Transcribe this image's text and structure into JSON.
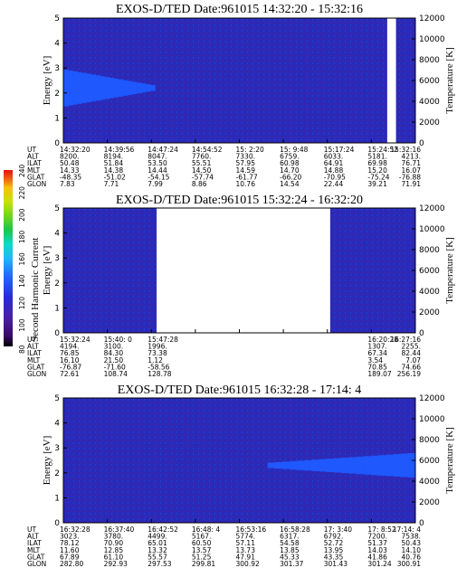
{
  "colors": {
    "background": "#2a2ab8",
    "band": "#1f5bff",
    "gap": "#ffffff",
    "colorbar": [
      "#000000",
      "#3a0a6a",
      "#4b1fa8",
      "#2b2bd8",
      "#1f6bff",
      "#1fb8ff",
      "#11d8c8",
      "#18c84a",
      "#6fd818",
      "#c8e010",
      "#f8c010",
      "#f06010",
      "#e81010"
    ]
  },
  "colorbar": {
    "title": "Second Harmonic Current",
    "ticks": [
      "80",
      "100",
      "120",
      "140",
      "160",
      "180",
      "200",
      "220",
      "240"
    ]
  },
  "row_labels": [
    "UT",
    "ALT",
    "ILAT",
    "MLT",
    "GLAT",
    "GLON"
  ],
  "chart_data": [
    {
      "type": "heatmap",
      "title": "EXOS-D/TED   Date:961015   14:32:20 - 15:32:16",
      "ylabel": "Energy [eV]",
      "y2label": "Temperature [K]",
      "ylim": [
        0,
        5
      ],
      "y_ticks": [
        "0",
        "1",
        "2",
        "3",
        "4",
        "5"
      ],
      "y2lim": [
        0,
        12000
      ],
      "y2_ticks": [
        "0",
        "2000",
        "4000",
        "6000",
        "8000",
        "10000",
        "12000"
      ],
      "band": {
        "x_start": 0.0,
        "x_end": 0.26,
        "y_center": 2.2,
        "half_width_start": 0.75,
        "half_width_end": 0.1
      },
      "data_gaps": [
        {
          "x_start": 0.92,
          "x_end": 0.945
        }
      ],
      "ephemeris": [
        [
          "14:32:20",
          "8200.",
          "50.48",
          "14.33",
          "-48.35",
          "7.83"
        ],
        [
          "14:39:56",
          "8194.",
          "51.84",
          "14.38",
          "-51.02",
          "7.71"
        ],
        [
          "14:47:24",
          "8047.",
          "53.50",
          "14.44",
          "-54.15",
          "7.99"
        ],
        [
          "14:54:52",
          "7760.",
          "55.51",
          "14.50",
          "-57.74",
          "8.86"
        ],
        [
          "15: 2:20",
          "7330.",
          "57.95",
          "14.59",
          "-61.77",
          "10.76"
        ],
        [
          "15: 9:48",
          "6759.",
          "60.98",
          "14.70",
          "-66.20",
          "14.54"
        ],
        [
          "15:17:24",
          "6033.",
          "64.91",
          "14.88",
          "-70.95",
          "22.44"
        ],
        [
          "15:24:52",
          "5181.",
          "69.98",
          "15.20",
          "-75.24",
          "39.21"
        ],
        [
          "15:32:16",
          "4213.",
          "76.71",
          "16.07",
          "-76.88",
          "71.91"
        ]
      ]
    },
    {
      "type": "heatmap",
      "title": "EXOS-D/TED   Date:961015   15:32:24 - 16:32:20",
      "ylabel": "Energy [eV]",
      "y2label": "Temperature [K]",
      "ylim": [
        0,
        5
      ],
      "y_ticks": [
        "0",
        "1",
        "2",
        "3",
        "4",
        "5"
      ],
      "y2lim": [
        0,
        12000
      ],
      "y2_ticks": [
        "0",
        "2000",
        "4000",
        "6000",
        "8000",
        "10000",
        "12000"
      ],
      "band": null,
      "data_gaps": [
        {
          "x_start": 0.265,
          "x_end": 0.758
        }
      ],
      "ephemeris": [
        [
          "15:32:24",
          "4194.",
          "76.85",
          "16.10",
          "-76.87",
          "72.61"
        ],
        [
          "15:40: 0",
          "3100.",
          "84.30",
          "21.50",
          "-71.60",
          "108.74"
        ],
        [
          "15:47:28",
          "1996.",
          "73.38",
          "1.12",
          "-58.56",
          "128.78"
        ],
        [
          "",
          "",
          "",
          "",
          "",
          ""
        ],
        [
          "",
          "",
          "",
          "",
          "",
          ""
        ],
        [
          "",
          "",
          "",
          "",
          "",
          ""
        ],
        [
          "",
          "",
          "",
          "",
          "",
          ""
        ],
        [
          "16:20:28",
          "1307.",
          "67.34",
          "3.54",
          "70.85",
          "189.07"
        ],
        [
          "16:27:16",
          "2255.",
          "82.44",
          "7.07",
          "74.66",
          "256.19"
        ]
      ]
    },
    {
      "type": "heatmap",
      "title": "EXOS-D/TED   Date:961015   16:32:28 - 17:14: 4",
      "ylabel": "Energy [eV]",
      "y2label": "Temperature [K]",
      "ylim": [
        0,
        5
      ],
      "y_ticks": [
        "0",
        "1",
        "2",
        "3",
        "4",
        "5"
      ],
      "y2lim": [
        0,
        12000
      ],
      "y2_ticks": [
        "0",
        "2000",
        "4000",
        "6000",
        "8000",
        "10000",
        "12000"
      ],
      "band": {
        "x_start": 0.58,
        "x_end": 1.0,
        "y_center": 2.3,
        "half_width_start": 0.1,
        "half_width_end": 0.5
      },
      "data_gaps": [],
      "ephemeris": [
        [
          "16:32:28",
          "3023.",
          "78.12",
          "11.60",
          "67.89",
          "282.80"
        ],
        [
          "16:37:40",
          "3780.",
          "70.90",
          "12.85",
          "61.10",
          "292.93"
        ],
        [
          "16:42:52",
          "4499.",
          "65.01",
          "13.32",
          "55.57",
          "297.53"
        ],
        [
          "16:48: 4",
          "5167.",
          "60.50",
          "13.57",
          "51.25",
          "299.81"
        ],
        [
          "16:53:16",
          "5774.",
          "57.11",
          "13.73",
          "47.91",
          "300.92"
        ],
        [
          "16:58:28",
          "6317.",
          "54.58",
          "13.85",
          "45.33",
          "301.37"
        ],
        [
          "17: 3:40",
          "6792.",
          "52.72",
          "13.95",
          "43.35",
          "301.43"
        ],
        [
          "17: 8:52",
          "7200.",
          "51.37",
          "14.03",
          "41.86",
          "301.24"
        ],
        [
          "17:14: 4",
          "7538.",
          "50.43",
          "14.10",
          "40.76",
          "300.91"
        ]
      ]
    }
  ]
}
